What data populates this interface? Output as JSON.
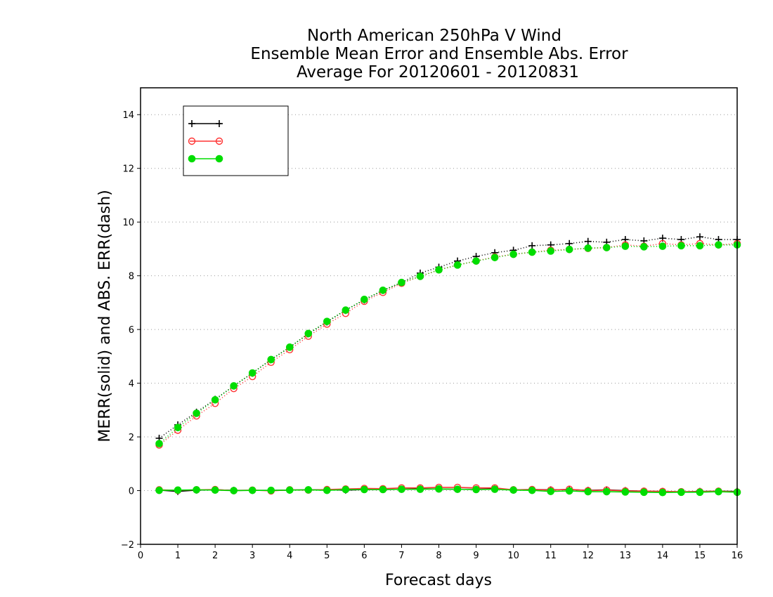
{
  "chart_data": {
    "type": "line",
    "title": [
      "North American 250hPa V Wind",
      "Ensemble Mean Error and Ensemble Abs. Error",
      "Average For 20120601 - 20120831"
    ],
    "xlabel": "Forecast days",
    "ylabel": "MERR(solid) and ABS. ERR(dash)",
    "xlim": [
      0,
      16
    ],
    "ylim": [
      -2,
      15
    ],
    "xticks": [
      "0",
      "1",
      "2",
      "3",
      "4",
      "5",
      "6",
      "7",
      "8",
      "9",
      "10",
      "11",
      "12",
      "13",
      "14",
      "15",
      "16"
    ],
    "yticks": [
      "−2",
      "0",
      "2",
      "4",
      "6",
      "8",
      "10",
      "12",
      "14"
    ],
    "grid": "horizontal dotted",
    "legend_placement": "top-left",
    "x": [
      0.5,
      1,
      1.5,
      2,
      2.5,
      3,
      3.5,
      4,
      4.5,
      5,
      5.5,
      6,
      6.5,
      7,
      7.5,
      8,
      8.5,
      9,
      9.5,
      10,
      10.5,
      11,
      11.5,
      12,
      12.5,
      13,
      13.5,
      14,
      14.5,
      15,
      15.5,
      16
    ],
    "series": [
      {
        "name": "",
        "color": "#000000",
        "marker": "plus",
        "merr": [
          0.02,
          -0.03,
          0.02,
          0.03,
          0.01,
          0.01,
          0.01,
          0.02,
          0.03,
          0.03,
          0.02,
          0.04,
          0.04,
          0.05,
          0.06,
          0.06,
          0.05,
          0.05,
          0.06,
          0.03,
          0.04,
          0.03,
          0.04,
          0.01,
          0.03,
          0.0,
          -0.02,
          -0.03,
          -0.05,
          -0.03,
          -0.02,
          -0.03
        ],
        "abs_err": [
          1.95,
          2.45,
          2.92,
          3.4,
          3.9,
          4.38,
          4.88,
          5.34,
          5.84,
          6.28,
          6.72,
          7.1,
          7.45,
          7.75,
          8.1,
          8.32,
          8.55,
          8.72,
          8.86,
          8.95,
          9.12,
          9.15,
          9.2,
          9.28,
          9.25,
          9.35,
          9.3,
          9.4,
          9.35,
          9.45,
          9.35,
          9.35
        ]
      },
      {
        "name": "",
        "color": "#ff3333",
        "marker": "open-circle",
        "merr": [
          0.03,
          0.01,
          0.03,
          0.04,
          0.0,
          0.02,
          -0.01,
          0.03,
          0.02,
          0.04,
          0.06,
          0.08,
          0.07,
          0.1,
          0.1,
          0.12,
          0.12,
          0.1,
          0.1,
          0.03,
          0.04,
          0.02,
          0.05,
          0.0,
          0.02,
          -0.01,
          -0.02,
          -0.03,
          -0.04,
          -0.04,
          -0.02,
          -0.05
        ],
        "abs_err": [
          1.7,
          2.25,
          2.78,
          3.25,
          3.8,
          4.25,
          4.78,
          5.25,
          5.75,
          6.2,
          6.6,
          7.05,
          7.38,
          7.72,
          7.98,
          8.22,
          8.4,
          8.55,
          8.7,
          8.8,
          8.88,
          8.95,
          8.98,
          9.02,
          9.05,
          9.15,
          9.1,
          9.2,
          9.15,
          9.2,
          9.15,
          9.2
        ]
      },
      {
        "name": "",
        "color": "#00dd00",
        "marker": "filled-circle",
        "merr": [
          0.01,
          0.02,
          0.03,
          0.02,
          0.0,
          0.01,
          0.01,
          0.02,
          0.03,
          0.01,
          0.04,
          0.04,
          0.04,
          0.05,
          0.05,
          0.06,
          0.05,
          0.04,
          0.05,
          0.02,
          0.01,
          -0.03,
          -0.01,
          -0.04,
          -0.04,
          -0.05,
          -0.06,
          -0.07,
          -0.06,
          -0.06,
          -0.04,
          -0.06
        ],
        "abs_err": [
          1.75,
          2.35,
          2.88,
          3.38,
          3.9,
          4.38,
          4.88,
          5.34,
          5.85,
          6.3,
          6.72,
          7.12,
          7.46,
          7.75,
          7.98,
          8.22,
          8.4,
          8.55,
          8.68,
          8.8,
          8.88,
          8.92,
          8.98,
          9.03,
          9.05,
          9.1,
          9.08,
          9.1,
          9.12,
          9.12,
          9.15,
          9.15
        ]
      }
    ]
  }
}
